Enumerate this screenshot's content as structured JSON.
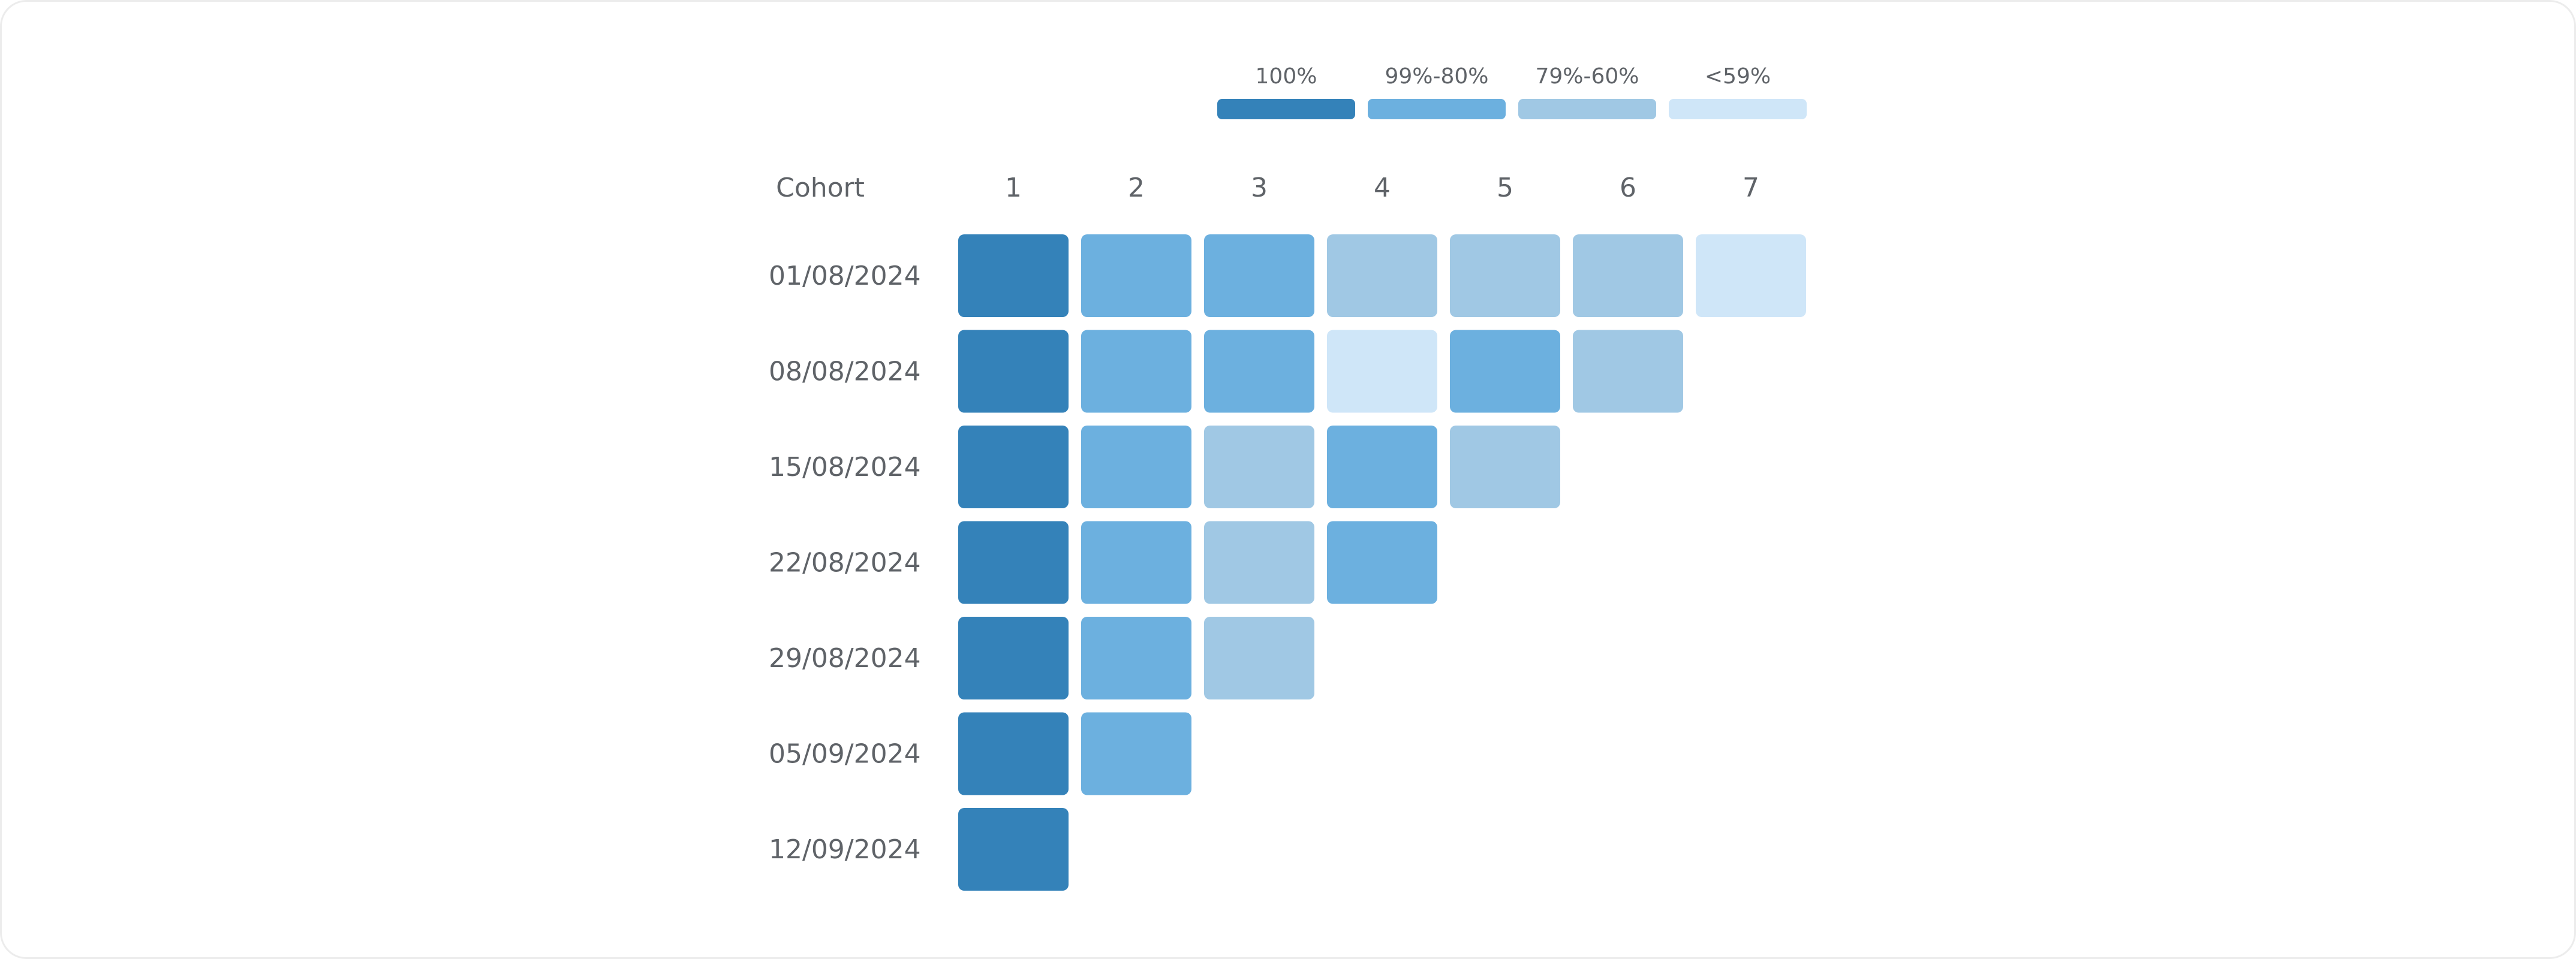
{
  "chart_data": {
    "type": "heatmap",
    "corner_label": "Cohort",
    "columns": [
      "1",
      "2",
      "3",
      "4",
      "5",
      "6",
      "7"
    ],
    "rows": [
      {
        "cohort": "01/08/2024",
        "buckets": [
          "100%",
          "99%-80%",
          "99%-80%",
          "79%-60%",
          "79%-60%",
          "79%-60%",
          "<59%"
        ]
      },
      {
        "cohort": "08/08/2024",
        "buckets": [
          "100%",
          "99%-80%",
          "99%-80%",
          "<59%",
          "99%-80%",
          "79%-60%"
        ]
      },
      {
        "cohort": "15/08/2024",
        "buckets": [
          "100%",
          "99%-80%",
          "79%-60%",
          "99%-80%",
          "79%-60%"
        ]
      },
      {
        "cohort": "22/08/2024",
        "buckets": [
          "100%",
          "99%-80%",
          "79%-60%",
          "99%-80%"
        ]
      },
      {
        "cohort": "29/08/2024",
        "buckets": [
          "100%",
          "99%-80%",
          "79%-60%"
        ]
      },
      {
        "cohort": "05/09/2024",
        "buckets": [
          "100%",
          "99%-80%"
        ]
      },
      {
        "cohort": "12/09/2024",
        "buckets": [
          "100%"
        ]
      }
    ],
    "legend": [
      {
        "label": "100%",
        "color": "#3482b9"
      },
      {
        "label": "99%-80%",
        "color": "#6cb0df"
      },
      {
        "label": "79%-60%",
        "color": "#a0c8e4"
      },
      {
        "label": "<59%",
        "color": "#cfe6f8"
      }
    ],
    "legend_position": "top-right"
  }
}
